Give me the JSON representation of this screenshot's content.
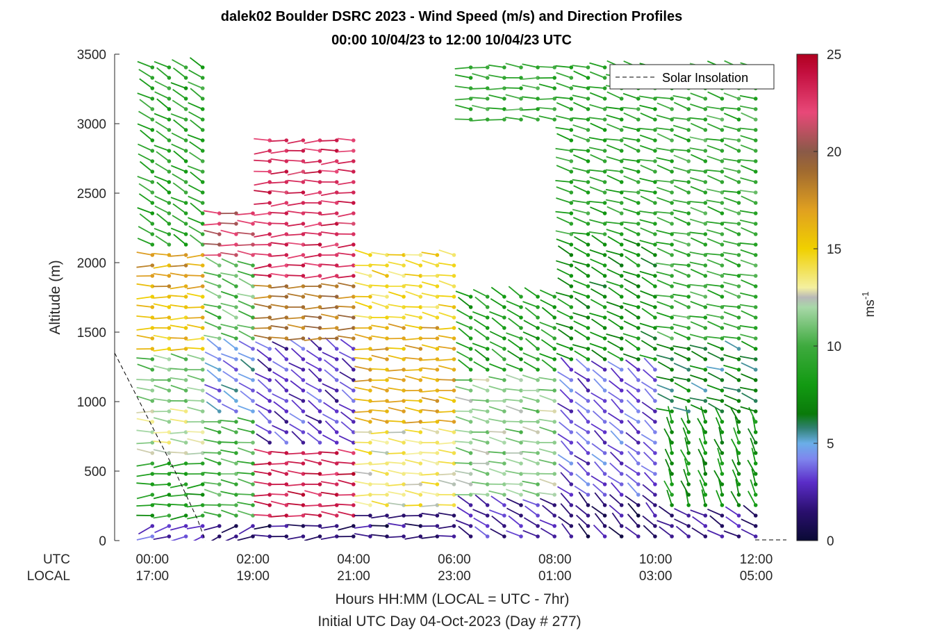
{
  "chart_data": {
    "type": "wind-barb-profile",
    "title_line1": "dalek02 Boulder DSRC 2023 - Wind Speed (m/s) and Direction Profiles",
    "title_line2": "00:00 10/04/23 to 12:00 10/04/23  UTC",
    "ylabel": "Altitude (m)",
    "xlabel_line1": "Hours HH:MM  (LOCAL = UTC - 7hr)",
    "xlabel_line2": "Initial UTC Day 04-Oct-2023 (Day # 277)",
    "utc_row_label": "UTC",
    "local_row_label": "LOCAL",
    "x_ticks": [
      {
        "hour": 0,
        "utc": "00:00",
        "local": "17:00"
      },
      {
        "hour": 2,
        "utc": "02:00",
        "local": "19:00"
      },
      {
        "hour": 4,
        "utc": "04:00",
        "local": "21:00"
      },
      {
        "hour": 6,
        "utc": "06:00",
        "local": "23:00"
      },
      {
        "hour": 8,
        "utc": "08:00",
        "local": "01:00"
      },
      {
        "hour": 10,
        "utc": "10:00",
        "local": "03:00"
      },
      {
        "hour": 12,
        "utc": "12:00",
        "local": "05:00"
      }
    ],
    "xlim_hours": [
      -0.75,
      12.6
    ],
    "y_ticks": [
      "0",
      "500",
      "1000",
      "1500",
      "2000",
      "2500",
      "3000",
      "3500"
    ],
    "ylim": [
      0,
      3500
    ],
    "legend": {
      "label": "Solar Insolation",
      "placement": "top-right",
      "line_style": "dashed"
    },
    "colorbar": {
      "label": "ms",
      "label_exponent": "-1",
      "range": [
        0,
        25
      ],
      "ticks": [
        "0",
        "5",
        "10",
        "15",
        "20",
        "25"
      ],
      "stops": [
        {
          "v": 0,
          "c": "#0a0a35"
        },
        {
          "v": 1.5,
          "c": "#2a0f6e"
        },
        {
          "v": 3,
          "c": "#5b2dc8"
        },
        {
          "v": 4.2,
          "c": "#7f86ee"
        },
        {
          "v": 5,
          "c": "#6aaee8"
        },
        {
          "v": 5.8,
          "c": "#2f8070"
        },
        {
          "v": 6.5,
          "c": "#0a7a0a"
        },
        {
          "v": 8,
          "c": "#129a12"
        },
        {
          "v": 10,
          "c": "#3eaa3e"
        },
        {
          "v": 12,
          "c": "#a8d8a8"
        },
        {
          "v": 12.5,
          "c": "#b8b8b8"
        },
        {
          "v": 13,
          "c": "#f4f0a0"
        },
        {
          "v": 15,
          "c": "#f0d000"
        },
        {
          "v": 17,
          "c": "#e0a020"
        },
        {
          "v": 19,
          "c": "#a06a30"
        },
        {
          "v": 20,
          "c": "#8a5a48"
        },
        {
          "v": 22,
          "c": "#e84878"
        },
        {
          "v": 24,
          "c": "#c41040"
        },
        {
          "v": 25,
          "c": "#b00020"
        }
      ]
    },
    "solar_insolation_line": [
      [
        -0.75,
        1350
      ],
      [
        0.45,
        500
      ],
      [
        0.9,
        150
      ],
      [
        1.05,
        0
      ]
    ],
    "wind_field": {
      "time_start_hour": 0,
      "time_end_hour": 12.05,
      "time_step_hours": 0.333,
      "alt_min_m": 30,
      "alt_max_m": 3420,
      "alt_step_m": 75,
      "segments": [
        {
          "t0": 0,
          "t1": 1.3,
          "layers": [
            {
              "top": 150,
              "speed": 3,
              "dir": 250
            },
            {
              "top": 600,
              "speed": 8.5,
              "dir": 265
            },
            {
              "top": 1000,
              "speed": 12.5,
              "dir": 275
            },
            {
              "top": 1350,
              "speed": 11,
              "dir": 280
            },
            {
              "top": 1800,
              "speed": 15.5,
              "dir": 272
            },
            {
              "top": 2100,
              "speed": 17,
              "dir": 270
            },
            {
              "top": 3420,
              "speed": 9,
              "dir": 300
            }
          ]
        },
        {
          "t0": 1.3,
          "t1": 2.1,
          "layers": [
            {
              "top": 150,
              "speed": 1.5,
              "dir": 250
            },
            {
              "top": 900,
              "speed": 10,
              "dir": 280
            },
            {
              "top": 1400,
              "speed": 4.5,
              "dir": 300
            },
            {
              "top": 2000,
              "speed": 10.5,
              "dir": 290
            },
            {
              "top": 3420,
              "speed": 21.5,
              "dir": 275
            }
          ]
        },
        {
          "t0": 2.1,
          "t1": 4.3,
          "layers": [
            {
              "top": 150,
              "speed": 1.5,
              "dir": 265
            },
            {
              "top": 700,
              "speed": 23.5,
              "dir": 275
            },
            {
              "top": 1400,
              "speed": 3,
              "dir": 305
            },
            {
              "top": 1900,
              "speed": 18.5,
              "dir": 272
            },
            {
              "top": 2900,
              "speed": 23,
              "dir": 268
            }
          ]
        },
        {
          "t0": 4.3,
          "t1": 6.3,
          "layers": [
            {
              "top": 200,
              "speed": 1.5,
              "dir": 270
            },
            {
              "top": 800,
              "speed": 13.5,
              "dir": 275
            },
            {
              "top": 1600,
              "speed": 16.5,
              "dir": 275
            },
            {
              "top": 2100,
              "speed": 14.5,
              "dir": 280
            }
          ]
        },
        {
          "t0": 6.3,
          "t1": 8.3,
          "layers": [
            {
              "top": 300,
              "speed": 2.5,
              "dir": 300
            },
            {
              "top": 1200,
              "speed": 11.5,
              "dir": 280
            },
            {
              "top": 1800,
              "speed": 8.5,
              "dir": 300
            },
            {
              "top": 3420,
              "speed": 9.5,
              "dir": 275
            }
          ]
        },
        {
          "t0": 8.3,
          "t1": 10.3,
          "layers": [
            {
              "top": 300,
              "speed": 1.5,
              "dir": 315
            },
            {
              "top": 1300,
              "speed": 3.5,
              "dir": 310
            },
            {
              "top": 2200,
              "speed": 7.5,
              "dir": 295
            },
            {
              "top": 3420,
              "speed": 9,
              "dir": 285
            }
          ]
        },
        {
          "t0": 10.3,
          "t1": 12.1,
          "layers": [
            {
              "top": 250,
              "speed": 2,
              "dir": 300
            },
            {
              "top": 900,
              "speed": 7.5,
              "dir": 340
            },
            {
              "top": 1400,
              "speed": 6.5,
              "dir": 290
            },
            {
              "top": 3420,
              "speed": 9.5,
              "dir": 285
            }
          ]
        }
      ],
      "gaps": [
        {
          "t0": 2.1,
          "t1": 4.3,
          "a0": 2900,
          "a1": 3420
        },
        {
          "t0": 4.3,
          "t1": 6.3,
          "a0": 2100,
          "a1": 3420
        },
        {
          "t0": 6.3,
          "t1": 8.3,
          "a0": 1800,
          "a1": 3000
        },
        {
          "t0": 1.3,
          "t1": 2.1,
          "a0": 2400,
          "a1": 3420
        }
      ]
    }
  }
}
